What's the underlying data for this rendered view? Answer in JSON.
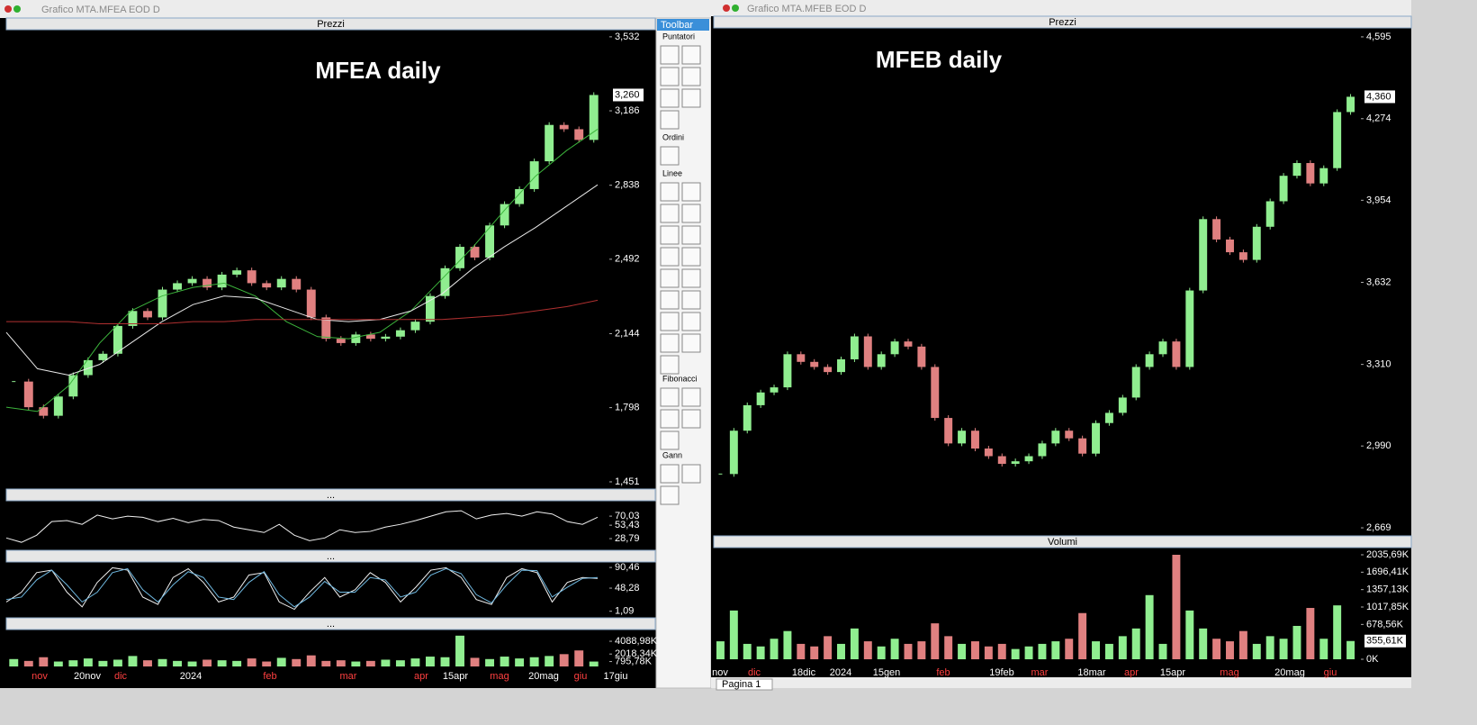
{
  "left": {
    "title": "Grafico MTA.MFEA EOD D",
    "price": {
      "header": "Prezzi",
      "label": "MFEA daily",
      "ylim": [
        1.43,
        3.561
      ],
      "yticks": [
        {
          "value": 3.532,
          "label": "3,532"
        },
        {
          "value": 3.186,
          "label": "3,186"
        },
        {
          "value": 2.838,
          "label": "2,838"
        },
        {
          "value": 2.492,
          "label": "2,492"
        },
        {
          "value": 2.144,
          "label": "2,144"
        },
        {
          "value": 1.798,
          "label": "1,798"
        },
        {
          "value": 1.451,
          "label": "1,451"
        }
      ],
      "last": {
        "value": 3.26,
        "label": "3,260"
      },
      "close": [
        1.92,
        1.8,
        1.76,
        1.85,
        1.95,
        2.02,
        2.05,
        2.18,
        2.25,
        2.22,
        2.35,
        2.38,
        2.4,
        2.36,
        2.42,
        2.44,
        2.38,
        2.36,
        2.4,
        2.35,
        2.22,
        2.12,
        2.1,
        2.14,
        2.12,
        2.13,
        2.16,
        2.2,
        2.32,
        2.45,
        2.55,
        2.5,
        2.65,
        2.75,
        2.82,
        2.95,
        3.12,
        3.1,
        3.05,
        3.26
      ],
      "ma": [
        {
          "color": "#3cb43c",
          "values": [
            1.8,
            1.78,
            1.9,
            2.1,
            2.25,
            2.32,
            2.36,
            2.38,
            2.32,
            2.2,
            2.13,
            2.12,
            2.15,
            2.25,
            2.4,
            2.55,
            2.72,
            2.88,
            3.0,
            3.1
          ]
        },
        {
          "color": "#e8e8e8",
          "values": [
            2.15,
            1.98,
            1.95,
            2.0,
            2.1,
            2.2,
            2.28,
            2.32,
            2.31,
            2.26,
            2.21,
            2.2,
            2.21,
            2.25,
            2.33,
            2.45,
            2.55,
            2.64,
            2.74,
            2.84
          ]
        },
        {
          "color": "#b03030",
          "values": [
            2.2,
            2.2,
            2.2,
            2.19,
            2.19,
            2.19,
            2.2,
            2.2,
            2.21,
            2.21,
            2.21,
            2.21,
            2.21,
            2.21,
            2.21,
            2.22,
            2.23,
            2.25,
            2.27,
            2.3
          ]
        }
      ]
    },
    "rsi": {
      "header": "...",
      "ylim": [
        14,
        95
      ],
      "yticks": [
        {
          "value": 70.03,
          "label": "70,03"
        },
        {
          "value": 53.43,
          "label": "53,43"
        },
        {
          "value": 28.79,
          "label": "28,79"
        }
      ],
      "values": [
        30,
        22,
        35,
        60,
        62,
        55,
        72,
        65,
        70,
        68,
        60,
        66,
        58,
        64,
        62,
        50,
        45,
        40,
        55,
        35,
        25,
        30,
        45,
        40,
        42,
        50,
        55,
        62,
        70,
        78,
        80,
        65,
        72,
        75,
        70,
        78,
        74,
        60,
        55,
        68
      ]
    },
    "stoch": {
      "header": "...",
      "ylim": [
        -5,
        98
      ],
      "yticks": [
        {
          "value": 90.46,
          "label": "90,46"
        },
        {
          "value": 48.28,
          "label": "48,28"
        },
        {
          "value": 1.09,
          "label": "1,09"
        }
      ],
      "series": [
        {
          "color": "#f0f0f0",
          "values": [
            20,
            40,
            80,
            85,
            40,
            10,
            60,
            90,
            85,
            30,
            15,
            70,
            88,
            60,
            20,
            30,
            75,
            80,
            20,
            5,
            40,
            70,
            30,
            45,
            80,
            60,
            20,
            50,
            85,
            90,
            70,
            25,
            15,
            70,
            88,
            80,
            20,
            60,
            70,
            68
          ]
        },
        {
          "color": "#6fb8e0",
          "values": [
            25,
            30,
            65,
            85,
            55,
            20,
            40,
            80,
            88,
            45,
            20,
            55,
            82,
            70,
            30,
            25,
            60,
            82,
            35,
            10,
            30,
            62,
            40,
            40,
            70,
            65,
            30,
            40,
            75,
            88,
            78,
            35,
            18,
            55,
            85,
            84,
            30,
            50,
            68,
            70
          ]
        }
      ]
    },
    "volume": {
      "header": "...",
      "ylim": [
        0,
        5850
      ],
      "yticks": [
        {
          "value": 4088.98,
          "label": "4088,98K"
        },
        {
          "value": 2018.34,
          "label": "2018,34K"
        },
        {
          "value": 795.78,
          "label": "795,78K"
        }
      ],
      "values": [
        1200,
        900,
        1500,
        800,
        1000,
        1300,
        900,
        1100,
        1700,
        1000,
        1200,
        900,
        800,
        1100,
        1000,
        900,
        1300,
        800,
        1400,
        1200,
        1800,
        900,
        1000,
        800,
        900,
        1100,
        1000,
        1300,
        1600,
        1500,
        5000,
        1400,
        1200,
        1600,
        1300,
        1500,
        1700,
        2000,
        2600,
        795.78
      ]
    },
    "xlabels": [
      {
        "label": "nov",
        "color": "#ff4040"
      },
      {
        "label": "20nov",
        "color": "#ffffff"
      },
      {
        "label": "dic",
        "color": "#ff4040"
      },
      {
        "label": "2024",
        "color": "#ffffff"
      },
      {
        "label": "feb",
        "color": "#ff4040"
      },
      {
        "label": "mar",
        "color": "#ff4040"
      },
      {
        "label": "apr",
        "color": "#ff4040"
      },
      {
        "label": "15apr",
        "color": "#ffffff"
      },
      {
        "label": "mag",
        "color": "#ff4040"
      },
      {
        "label": "20mag",
        "color": "#ffffff"
      },
      {
        "label": "giu",
        "color": "#ff4040"
      },
      {
        "label": "17giu",
        "color": "#ffffff"
      }
    ]
  },
  "toolbar": {
    "title": "Toolbar",
    "sections": [
      "Puntatori",
      "Ordini",
      "Linee",
      "Fibonacci",
      "Gann"
    ]
  },
  "right": {
    "title": "Grafico MTA.MFEB EOD D",
    "price": {
      "header": "Prezzi",
      "label": "MFEB daily",
      "ylim": [
        2.648,
        4.623
      ],
      "yticks": [
        {
          "value": 4.595,
          "label": "4,595"
        },
        {
          "value": 4.274,
          "label": "4,274"
        },
        {
          "value": 3.954,
          "label": "3,954"
        },
        {
          "value": 3.632,
          "label": "3,632"
        },
        {
          "value": 3.31,
          "label": "3,310"
        },
        {
          "value": 2.99,
          "label": "2,990"
        },
        {
          "value": 2.669,
          "label": "2,669"
        }
      ],
      "last": {
        "value": 4.36,
        "label": "4,360"
      },
      "close": [
        2.88,
        3.05,
        3.15,
        3.2,
        3.22,
        3.35,
        3.32,
        3.3,
        3.28,
        3.33,
        3.42,
        3.3,
        3.35,
        3.4,
        3.38,
        3.3,
        3.1,
        3.0,
        3.05,
        2.98,
        2.95,
        2.92,
        2.93,
        2.95,
        3.0,
        3.05,
        3.02,
        2.96,
        3.08,
        3.12,
        3.18,
        3.3,
        3.35,
        3.4,
        3.3,
        3.6,
        3.88,
        3.8,
        3.75,
        3.72,
        3.85,
        3.95,
        4.05,
        4.1,
        4.02,
        4.08,
        4.3,
        4.36
      ]
    },
    "volume": {
      "header": "Volumi",
      "ylim": [
        -140,
        2176
      ],
      "yticks": [
        {
          "value": 2035.69,
          "label": "2035,69K"
        },
        {
          "value": 1696.41,
          "label": "1696,41K"
        },
        {
          "value": 1357.13,
          "label": "1357,13K"
        },
        {
          "value": 1017.85,
          "label": "1017,85K"
        },
        {
          "value": 678.56,
          "label": "678,56K"
        },
        {
          "value": 0,
          "label": "0K"
        }
      ],
      "last": {
        "value": 355.61,
        "label": "355,61K"
      },
      "values": [
        350,
        950,
        300,
        250,
        400,
        550,
        300,
        250,
        450,
        300,
        600,
        350,
        250,
        400,
        300,
        350,
        700,
        450,
        300,
        350,
        250,
        300,
        200,
        250,
        300,
        350,
        400,
        900,
        350,
        300,
        450,
        600,
        1250,
        300,
        2035.69,
        950,
        600,
        400,
        350,
        550,
        300,
        450,
        400,
        650,
        1000,
        400,
        1050,
        355.61
      ]
    },
    "xlabels": [
      {
        "label": "nov",
        "color": "#ffffff"
      },
      {
        "label": "dic",
        "color": "#ff4040"
      },
      {
        "label": "18dic",
        "color": "#ffffff"
      },
      {
        "label": "2024",
        "color": "#ffffff"
      },
      {
        "label": "15gen",
        "color": "#ffffff"
      },
      {
        "label": "feb",
        "color": "#ff4040"
      },
      {
        "label": "19feb",
        "color": "#ffffff"
      },
      {
        "label": "mar",
        "color": "#ff4040"
      },
      {
        "label": "18mar",
        "color": "#ffffff"
      },
      {
        "label": "apr",
        "color": "#ff4040"
      },
      {
        "label": "15apr",
        "color": "#ffffff"
      },
      {
        "label": "mag",
        "color": "#ff4040"
      },
      {
        "label": "20mag",
        "color": "#ffffff"
      },
      {
        "label": "giu",
        "color": "#ff4040"
      }
    ],
    "tab": "Pagina 1"
  }
}
